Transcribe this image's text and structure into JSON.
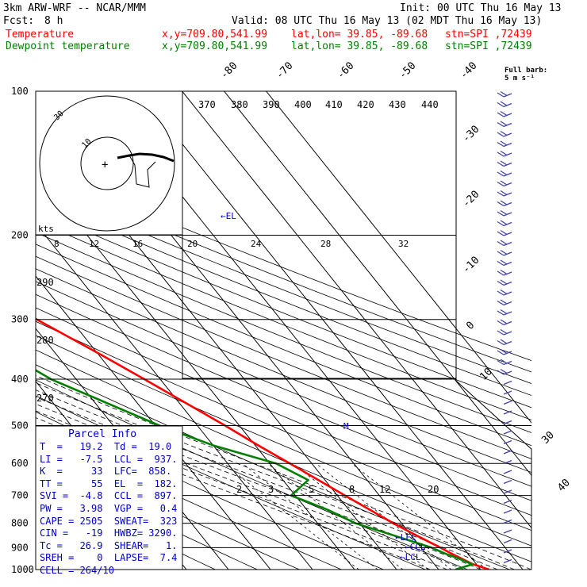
{
  "header": {
    "model": "3km ARW-WRF -- NCAR/MMM",
    "init": "Init: 00 UTC Thu 16 May 13",
    "fcst_label": "Fcst:",
    "fcst_value": "8 h",
    "valid": "Valid: 08 UTC Thu 16 May 13 (02 MDT Thu 16 May 13)",
    "temp_label": "Temperature",
    "dew_label": "Dewpoint temperature",
    "coords": "x,y=709.80,541.99",
    "latlon": "lat,lon= 39.85, -89.68",
    "station": "stn=SPI ,72439"
  },
  "colors": {
    "temperature": "#ff0000",
    "dewpoint": "#008000",
    "text": "#000000",
    "panel": "#0000cc",
    "wind": "#4444aa"
  },
  "barb_legend": "Full barb: 5 m s⁻¹",
  "hodograph": {
    "unit_label": "kts",
    "ring_labels": [
      "10",
      "30"
    ],
    "speed_ticks": [
      "8",
      "12",
      "16",
      "20",
      "24",
      "28",
      "32"
    ]
  },
  "parcel_info": {
    "title": "Parcel Info",
    "rows": [
      "T  =   19.2  Td =  19.0",
      "LI =   -7.5  LCL =  937.",
      "K  =     33  LFC=  858.",
      "TT =     55  EL  =  182.",
      "SVI =  -4.8  CCL =  897.",
      "PW =   3.98  VGP =   0.4",
      "CAPE = 2505  SWEAT=  323",
      "CIN =   -19  HWBZ= 3290.",
      "Tc =   26.9  SHEAR=   1.",
      "SREH =    0  LAPSE=  7.4",
      "CELL = 264/10"
    ]
  },
  "chart_data": {
    "type": "line",
    "title": "",
    "xlabel": "",
    "ylabel": "",
    "y_scale": "log",
    "ylim": [
      1000,
      100
    ],
    "pressure_ticks": [
      100,
      200,
      300,
      400,
      500,
      600,
      700,
      800,
      900,
      1000
    ],
    "isotherm_labels": [
      -80,
      -70,
      -60,
      -50,
      -40,
      -30,
      -20,
      -10,
      0,
      10,
      30,
      40
    ],
    "theta_labels": [
      370,
      380,
      390,
      400,
      410,
      420,
      430,
      440
    ],
    "theta_side_labels": [
      290,
      280,
      270
    ],
    "mixing_ratio_labels": [
      2,
      3,
      5,
      8,
      12,
      20
    ],
    "annotations": [
      "EL",
      "LFC",
      "CCL",
      "LCL",
      "M"
    ],
    "series": [
      {
        "name": "Temperature",
        "points": [
          [
            1000,
            22.0
          ],
          [
            975,
            19.2
          ],
          [
            950,
            17.6
          ],
          [
            925,
            16.0
          ],
          [
            900,
            14.6
          ],
          [
            850,
            11.3
          ],
          [
            800,
            8.0
          ],
          [
            750,
            5.0
          ],
          [
            700,
            1.8
          ],
          [
            650,
            -1.6
          ],
          [
            600,
            -5.2
          ],
          [
            550,
            -9.3
          ],
          [
            500,
            -13.4
          ],
          [
            450,
            -18.3
          ],
          [
            400,
            -23.8
          ],
          [
            350,
            -30.2
          ],
          [
            300,
            -38.0
          ],
          [
            250,
            -46.8
          ],
          [
            200,
            -57.5
          ],
          [
            175,
            -57.0
          ],
          [
            150,
            -56.0
          ],
          [
            125,
            -54.0
          ],
          [
            100,
            -57.0
          ]
        ]
      },
      {
        "name": "Dewpoint temperature",
        "points": [
          [
            1000,
            14.0
          ],
          [
            975,
            19.0
          ],
          [
            950,
            17.0
          ],
          [
            925,
            14.5
          ],
          [
            900,
            12.5
          ],
          [
            850,
            6.0
          ],
          [
            800,
            -1.0
          ],
          [
            750,
            -5.0
          ],
          [
            700,
            -11.0
          ],
          [
            650,
            -4.0
          ],
          [
            600,
            -8.5
          ],
          [
            550,
            -20.0
          ],
          [
            500,
            -29.0
          ],
          [
            450,
            -37.0
          ],
          [
            400,
            -46.0
          ],
          [
            350,
            -52.0
          ],
          [
            300,
            -56.0
          ],
          [
            250,
            -66.0
          ],
          [
            200,
            -78.0
          ],
          [
            175,
            -81.0
          ],
          [
            150,
            -83.0
          ],
          [
            125,
            -83.0
          ],
          [
            100,
            -85.0
          ]
        ]
      }
    ]
  }
}
